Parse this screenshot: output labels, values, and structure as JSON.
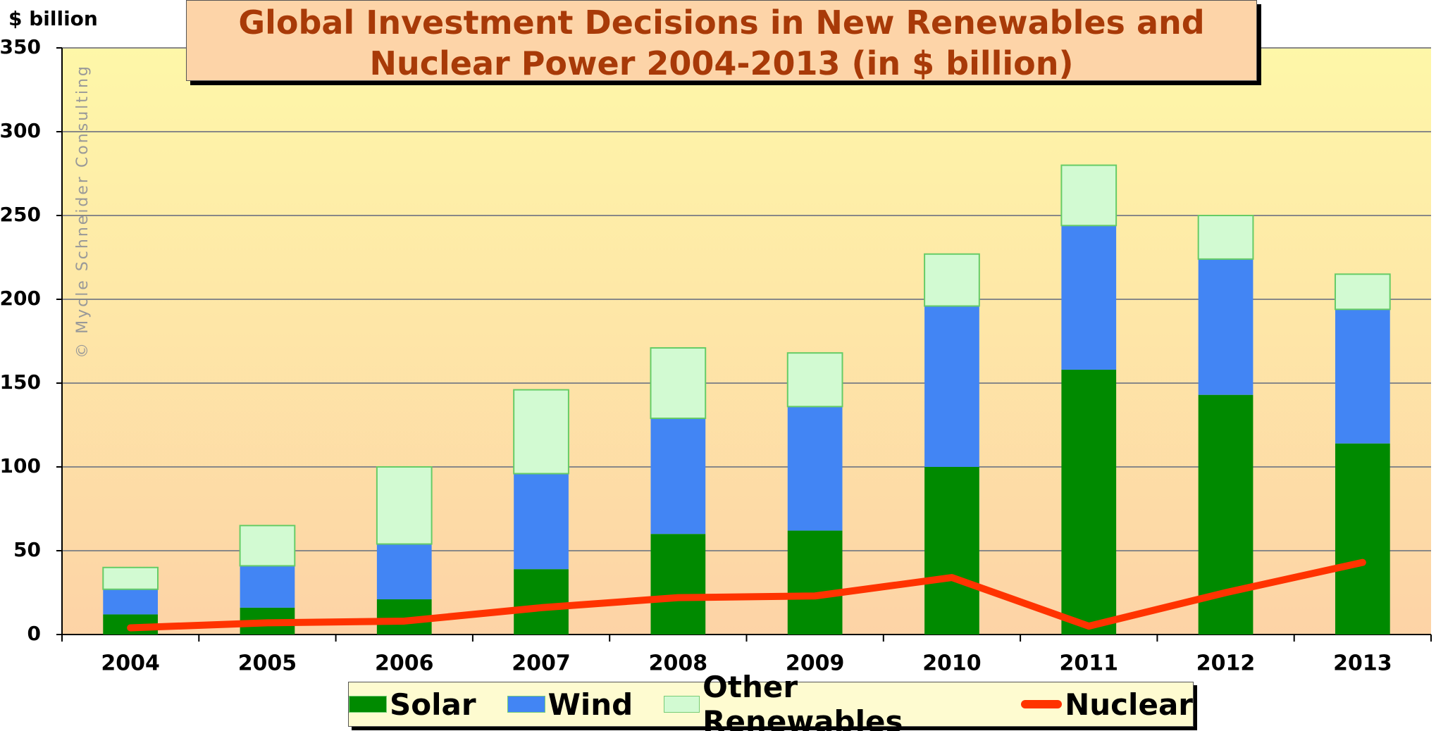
{
  "chart_data": {
    "type": "bar",
    "stacked": true,
    "title": "Global Investment Decisions in New Renewables and Nuclear Power 2004-2013  (in $ billion)",
    "y_label": "$ billion",
    "watermark": "© Mycle Schneider Consulting",
    "categories": [
      "2004",
      "2005",
      "2006",
      "2007",
      "2008",
      "2009",
      "2010",
      "2011",
      "2012",
      "2013"
    ],
    "series": [
      {
        "name": "Solar",
        "color": "#008a00",
        "values": [
          12,
          16,
          21,
          39,
          60,
          62,
          100,
          158,
          143,
          114
        ]
      },
      {
        "name": "Wind",
        "color": "#4285f4",
        "values": [
          15,
          25,
          33,
          57,
          69,
          74,
          96,
          86,
          81,
          80
        ]
      },
      {
        "name": "Other Renewables",
        "color": "#d2fad2",
        "values": [
          13,
          24,
          46,
          50,
          42,
          32,
          31,
          36,
          26,
          21
        ]
      },
      {
        "name": "Nuclear",
        "color": "#ff3300",
        "type": "line",
        "values": [
          4,
          7,
          8,
          16,
          22,
          23,
          34,
          5,
          25,
          43
        ]
      }
    ],
    "ylim": [
      0,
      350
    ],
    "yticks": [
      0,
      50,
      100,
      150,
      200,
      250,
      300,
      350
    ],
    "grid": true
  }
}
